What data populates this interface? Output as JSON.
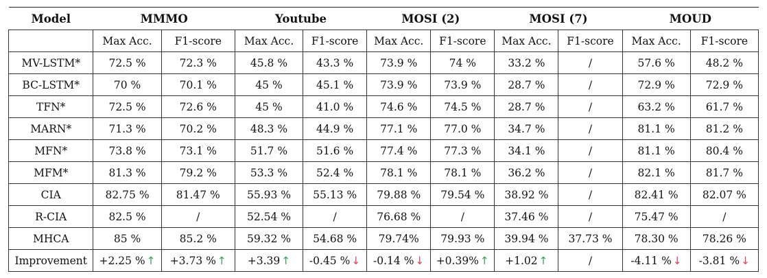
{
  "table": {
    "model_header": "Model",
    "groups": [
      "MMMO",
      "Youtube",
      "MOSI (2)",
      "MOSI (7)",
      "MOUD"
    ],
    "subheaders": [
      "Max Acc.",
      "F1-score",
      "Max Acc.",
      "F1-score",
      "Max Acc.",
      "F1-score",
      "Max Acc.",
      "F1-score",
      "Max Acc.",
      "F1-score"
    ],
    "rows": [
      {
        "model": "MV-LSTM*",
        "cells": [
          "72.5 %",
          "72.3 %",
          "45.8 %",
          "43.3 %",
          "73.9 %",
          "74 %",
          "33.2 %",
          "/",
          "57.6 %",
          "48.2 %"
        ]
      },
      {
        "model": "BC-LSTM*",
        "cells": [
          "70 %",
          "70.1 %",
          "45 %",
          "45.1 %",
          "73.9 %",
          "73.9 %",
          "28.7 %",
          "/",
          "72.9 %",
          "72.9 %"
        ]
      },
      {
        "model": "TFN*",
        "cells": [
          "72.5 %",
          "72.6 %",
          "45 %",
          "41.0 %",
          "74.6 %",
          "74.5 %",
          "28.7 %",
          "/",
          "63.2 %",
          "61.7 %"
        ]
      },
      {
        "model": "MARN*",
        "cells": [
          "71.3 %",
          "70.2 %",
          "48.3 %",
          "44.9 %",
          "77.1 %",
          "77.0 %",
          "34.7 %",
          "/",
          "81.1 %",
          "81.2 %"
        ]
      },
      {
        "model": "MFN*",
        "cells": [
          "73.8 %",
          "73.1 %",
          "51.7 %",
          "51.6 %",
          "77.4 %",
          "77.3 %",
          "34.1 %",
          "/",
          "81.1 %",
          "80.4 %"
        ]
      },
      {
        "model": "MFM*",
        "cells": [
          "81.3 %",
          "79.2 %",
          "53.3 %",
          "52.4 %",
          "78.1 %",
          "78.1 %",
          "36.2 %",
          "/",
          "82.1 %",
          "81.7 %"
        ]
      },
      {
        "model": "CIA",
        "cells": [
          "82.75 %",
          "81.47 %",
          "55.93 %",
          "55.13 %",
          "79.88 %",
          "79.54 %",
          "38.92 %",
          "/",
          "82.41 %",
          "82.07 %"
        ]
      },
      {
        "model": "R-CIA",
        "cells": [
          "82.5 %",
          "/",
          "52.54 %",
          "/",
          "76.68 %",
          "/",
          "37.46 %",
          "/",
          "75.47 %",
          "/"
        ]
      },
      {
        "model": "MHCA",
        "cells": [
          "85 %",
          "85.2 %",
          "59.32 %",
          "54.68 %",
          "79.74%",
          "79.93 %",
          "39.94 %",
          "37.73 %",
          "78.30 %",
          "78.26 %"
        ]
      }
    ],
    "improvement": {
      "model": "Improvement",
      "cells": [
        {
          "text": "+2.25 %",
          "arrow": "↑"
        },
        {
          "text": "+3.73 %",
          "arrow": "↑"
        },
        {
          "text": "+3.39",
          "arrow": "↑"
        },
        {
          "text": "-0.45 %",
          "arrow": "↓"
        },
        {
          "text": "-0.14 %",
          "arrow": "↓"
        },
        {
          "text": "+0.39%",
          "arrow": "↑"
        },
        {
          "text": "+1.02",
          "arrow": "↑"
        },
        {
          "text": "/",
          "arrow": ""
        },
        {
          "text": "-4.11 %",
          "arrow": "↓"
        },
        {
          "text": "-3.81 %",
          "arrow": "↓"
        }
      ]
    },
    "colors": {
      "up_arrow": "#3aa35b",
      "down_arrow": "#d24a5a"
    }
  }
}
